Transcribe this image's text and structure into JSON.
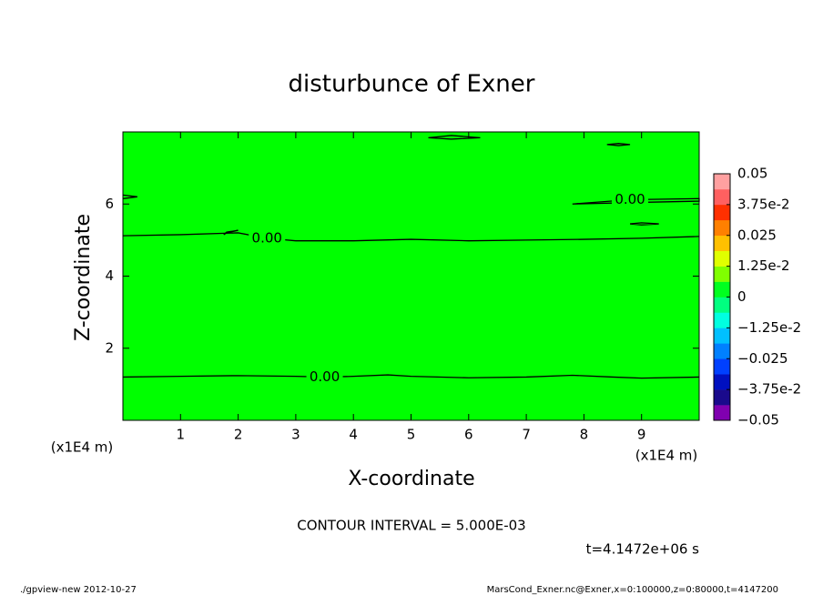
{
  "chart_data": {
    "type": "contour",
    "title": "disturbunce of Exner",
    "xlabel": "X-coordinate",
    "ylabel": "Z-coordinate",
    "x_unit": "(x1E4 m)",
    "x_unit_right": "(x1E4 m)",
    "xlim": [
      0,
      10
    ],
    "ylim": [
      0,
      8
    ],
    "xticks": [
      1,
      2,
      3,
      4,
      5,
      6,
      7,
      8,
      9
    ],
    "yticks": [
      2,
      4,
      6
    ],
    "fill_color": "#00ff00",
    "contours": [
      {
        "label": "0.00",
        "x": [
          0,
          1,
          2,
          3,
          3.5,
          4,
          4.6,
          5,
          6,
          7,
          7.8,
          8.5,
          9,
          10
        ],
        "y": [
          1.2,
          1.22,
          1.24,
          1.22,
          1.2,
          1.22,
          1.26,
          1.22,
          1.18,
          1.2,
          1.25,
          1.2,
          1.17,
          1.2
        ]
      },
      {
        "label": "0.00",
        "x": [
          0,
          1,
          2,
          2.5,
          3,
          4,
          5,
          6,
          7,
          8,
          9,
          10
        ],
        "y": [
          5.12,
          5.15,
          5.2,
          5.05,
          4.98,
          4.98,
          5.02,
          4.98,
          5.0,
          5.02,
          5.05,
          5.1
        ]
      },
      {
        "label": "0.00",
        "x": [
          7.8,
          8.8,
          10,
          10,
          8.8,
          7.8
        ],
        "y": [
          6.0,
          6.12,
          6.15,
          6.08,
          6.04,
          6.0
        ]
      },
      {
        "x": [
          5.3,
          5.7,
          6.2,
          5.7,
          5.3
        ],
        "y": [
          7.84,
          7.9,
          7.84,
          7.8,
          7.84
        ]
      },
      {
        "x": [
          8.4,
          8.6,
          8.8,
          8.6,
          8.4
        ],
        "y": [
          7.65,
          7.68,
          7.65,
          7.62,
          7.65
        ]
      },
      {
        "x": [
          8.8,
          9.0,
          9.3,
          9.0,
          8.8
        ],
        "y": [
          5.45,
          5.48,
          5.45,
          5.42,
          5.45
        ]
      },
      {
        "x": [
          1.8,
          2.0,
          1.8,
          1.75,
          1.8
        ],
        "y": [
          5.2,
          5.27,
          5.22,
          5.15,
          5.2
        ]
      },
      {
        "x": [
          0,
          0.25,
          0
        ],
        "y": [
          6.15,
          6.2,
          6.25
        ]
      }
    ],
    "contour_interval": "CONTOUR INTERVAL = 5.000E-03",
    "time_label": "t=4.1472e+06 s",
    "footer_left": "./gpview-new  2012-10-27",
    "footer_right": "MarsCond_Exner.nc@Exner,x=0:100000,z=0:80000,t=4147200",
    "colorbar": {
      "clim": [
        -0.05,
        0.05
      ],
      "ticks": [
        0.05,
        {
          "value": 0.0375,
          "label": "3.75e-2"
        },
        0.025,
        {
          "value": 0.0125,
          "label": "1.25e-2"
        },
        0,
        {
          "value": -0.0125,
          "label": "−1.25e-2"
        },
        {
          "value": -0.025,
          "label": "−0.025"
        },
        {
          "value": -0.0375,
          "label": "−3.75e-2"
        },
        {
          "value": -0.05,
          "label": "−0.05"
        }
      ],
      "colors": [
        "#8000b0",
        "#1a0a8c",
        "#0010c0",
        "#0040ff",
        "#0080ff",
        "#00c0ff",
        "#00ffe0",
        "#00ff80",
        "#00ff20",
        "#80ff00",
        "#e0ff00",
        "#ffc000",
        "#ff8000",
        "#ff3000",
        "#ff6060",
        "#ffa0a0"
      ]
    }
  }
}
